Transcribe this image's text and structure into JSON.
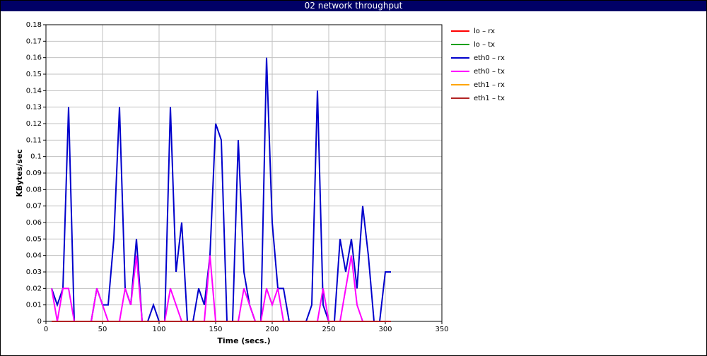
{
  "chart_data": {
    "type": "line",
    "title": "02 network throughput",
    "x_label": "Time (secs.)",
    "y_label": "KBytes/sec",
    "x": [
      5,
      10,
      15,
      20,
      25,
      30,
      35,
      40,
      45,
      50,
      55,
      60,
      65,
      70,
      75,
      80,
      85,
      90,
      95,
      100,
      105,
      110,
      115,
      120,
      125,
      130,
      135,
      140,
      145,
      150,
      155,
      160,
      165,
      170,
      175,
      180,
      185,
      190,
      195,
      200,
      205,
      210,
      215,
      220,
      225,
      230,
      235,
      240,
      245,
      250,
      255,
      260,
      265,
      270,
      275,
      280,
      285,
      290,
      295,
      300,
      305
    ],
    "series": [
      {
        "name": "lo – rx",
        "color": "#ff0000",
        "values": [
          0,
          0,
          0,
          0,
          0,
          0,
          0,
          0,
          0,
          0,
          0,
          0,
          0,
          0,
          0,
          0,
          0,
          0,
          0,
          0,
          0,
          0,
          0,
          0,
          0,
          0,
          0,
          0,
          0,
          0,
          0,
          0,
          0,
          0,
          0,
          0,
          0,
          0,
          0,
          0,
          0,
          0,
          0,
          0,
          0,
          0,
          0,
          0,
          0,
          0,
          0,
          0,
          0,
          0,
          0,
          0,
          0,
          0,
          0,
          0,
          0
        ]
      },
      {
        "name": "lo – tx",
        "color": "#00a000",
        "values": [
          0,
          0,
          0,
          0,
          0,
          0,
          0,
          0,
          0,
          0,
          0,
          0,
          0,
          0,
          0,
          0,
          0,
          0,
          0,
          0,
          0,
          0,
          0,
          0,
          0,
          0,
          0,
          0,
          0,
          0,
          0,
          0,
          0,
          0,
          0,
          0,
          0,
          0,
          0,
          0,
          0,
          0,
          0,
          0,
          0,
          0,
          0,
          0,
          0,
          0,
          0,
          0,
          0,
          0,
          0,
          0,
          0,
          0,
          0,
          0,
          0
        ]
      },
      {
        "name": "eth0 – rx",
        "color": "#0000cc",
        "values": [
          0.02,
          0.01,
          0.02,
          0.13,
          0,
          0,
          0,
          0,
          0.02,
          0.01,
          0.01,
          0.05,
          0.13,
          0.02,
          0.01,
          0.05,
          0,
          0,
          0.01,
          0,
          0,
          0.13,
          0.03,
          0.06,
          0,
          0,
          0.02,
          0.01,
          0.04,
          0.12,
          0.11,
          0,
          0,
          0.11,
          0.03,
          0.01,
          0,
          0,
          0.16,
          0.06,
          0.02,
          0.02,
          0,
          0,
          0,
          0,
          0.01,
          0.14,
          0.01,
          0,
          0,
          0.05,
          0.03,
          0.05,
          0.02,
          0.07,
          0.04,
          0,
          0,
          0.03,
          0.03
        ]
      },
      {
        "name": "eth0 – tx",
        "color": "#ff00ff",
        "values": [
          0.02,
          0,
          0.02,
          0.02,
          0,
          0,
          0,
          0,
          0.02,
          0.01,
          0,
          0,
          0,
          0.02,
          0.01,
          0.04,
          0,
          0,
          0,
          0,
          0,
          0.02,
          0.01,
          0,
          0,
          0,
          0,
          0,
          0.04,
          0,
          0,
          0,
          0,
          0,
          0.02,
          0.01,
          0,
          0,
          0.02,
          0.01,
          0.02,
          0,
          0,
          0,
          0,
          0,
          0,
          0,
          0.02,
          0,
          0,
          0,
          0.02,
          0.04,
          0.01,
          0,
          0,
          0,
          0,
          0,
          0
        ]
      },
      {
        "name": "eth1 – rx",
        "color": "#ffa500",
        "values": [
          0,
          0,
          0,
          0,
          0,
          0,
          0,
          0,
          0,
          0,
          0,
          0,
          0,
          0,
          0,
          0,
          0,
          0,
          0,
          0,
          0,
          0,
          0,
          0,
          0,
          0,
          0,
          0,
          0,
          0,
          0,
          0,
          0,
          0,
          0,
          0,
          0,
          0,
          0,
          0,
          0,
          0,
          0,
          0,
          0,
          0,
          0,
          0,
          0,
          0,
          0,
          0,
          0,
          0,
          0,
          0,
          0,
          0,
          0,
          0,
          0
        ]
      },
      {
        "name": "eth1 – tx",
        "color": "#b22222",
        "values": [
          0,
          0,
          0,
          0,
          0,
          0,
          0,
          0,
          0,
          0,
          0,
          0,
          0,
          0,
          0,
          0,
          0,
          0,
          0,
          0,
          0,
          0,
          0,
          0,
          0,
          0,
          0,
          0,
          0,
          0,
          0,
          0,
          0,
          0,
          0,
          0,
          0,
          0,
          0,
          0,
          0,
          0,
          0,
          0,
          0,
          0,
          0,
          0,
          0,
          0,
          0,
          0,
          0,
          0,
          0,
          0,
          0,
          0,
          0,
          0,
          0
        ]
      }
    ],
    "xlim": [
      0,
      350
    ],
    "xticks": [
      0,
      50,
      100,
      150,
      200,
      250,
      300,
      350
    ],
    "ylim": [
      0,
      0.18
    ],
    "yticks": [
      0,
      0.01,
      0.02,
      0.03,
      0.04,
      0.05,
      0.06,
      0.07,
      0.08,
      0.09,
      0.1,
      0.11,
      0.12,
      0.13,
      0.14,
      0.15,
      0.16,
      0.17,
      0.18
    ],
    "grid": true,
    "legend": "right"
  }
}
